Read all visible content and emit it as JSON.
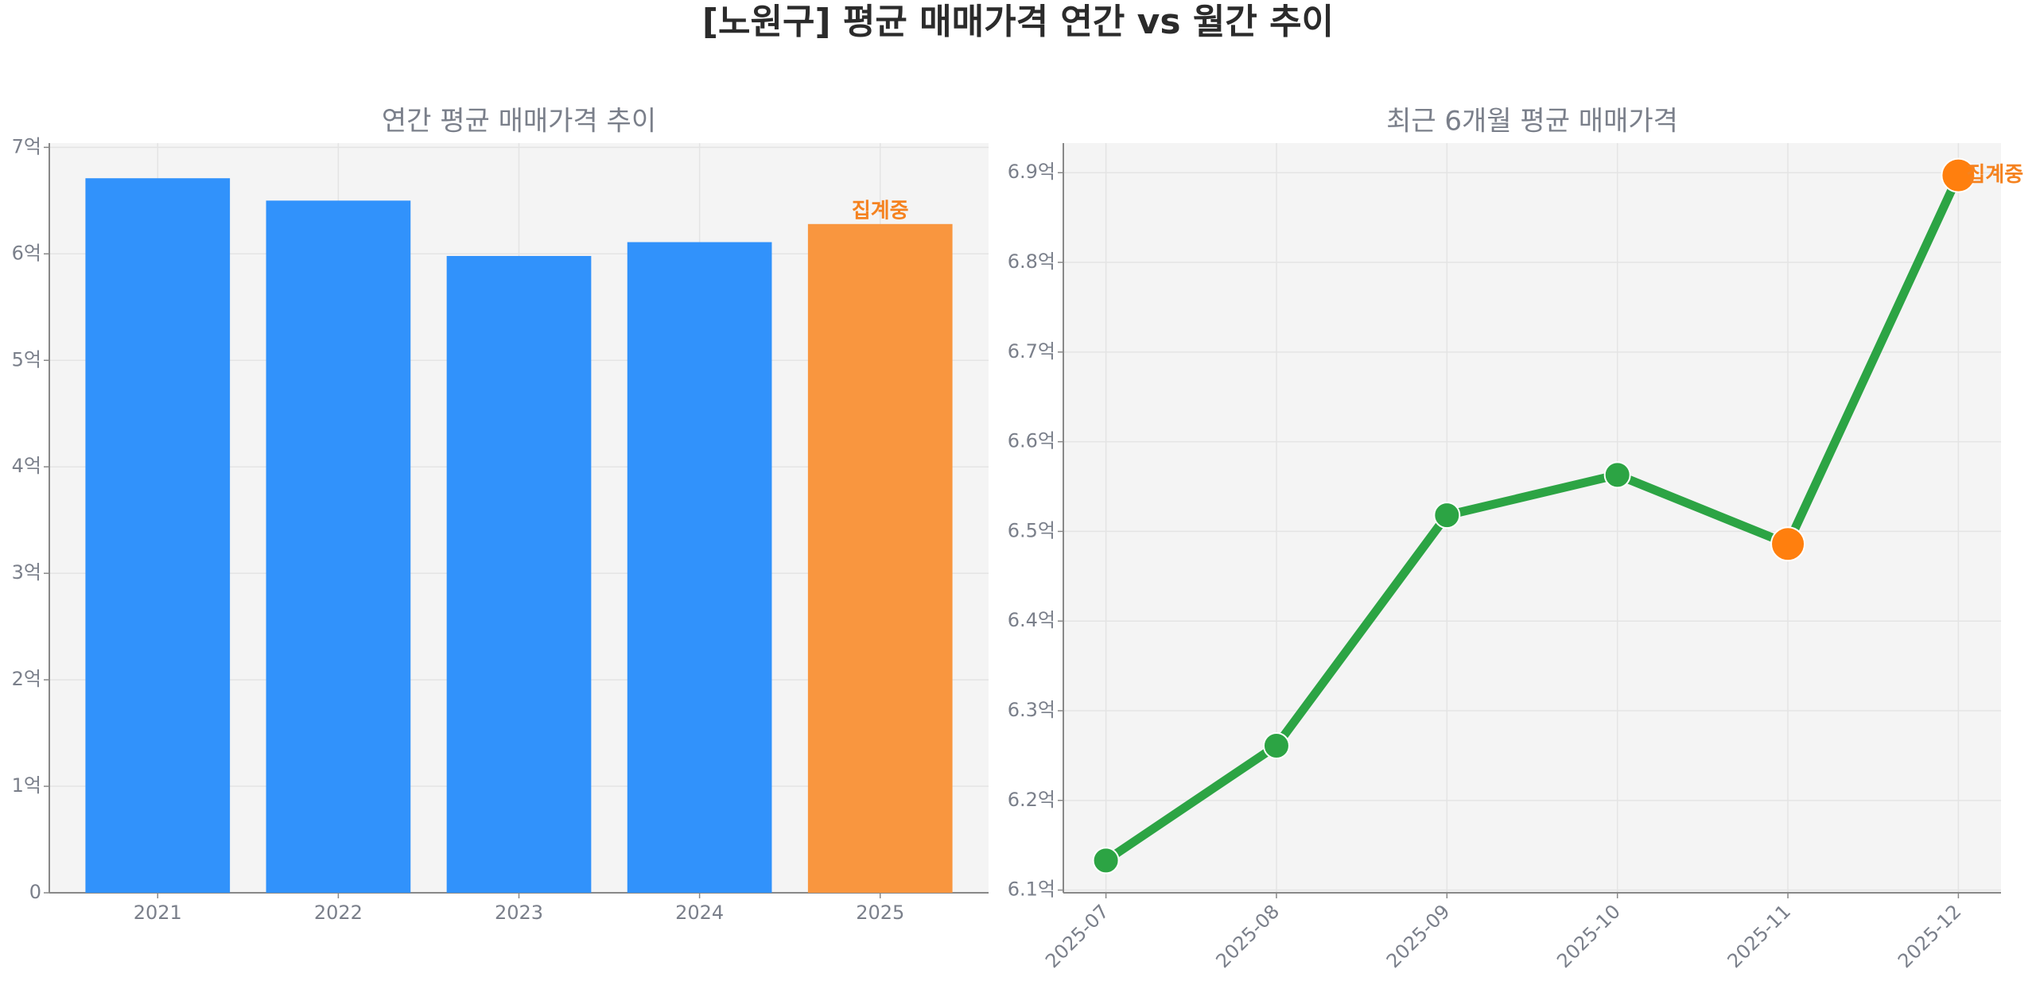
{
  "title": "[노원구] 평균 매매가격 연간 vs 월간 추이",
  "chart_data": [
    {
      "type": "bar",
      "title": "연간 평균 매매가격 추이",
      "categories": [
        "2021",
        "2022",
        "2023",
        "2024",
        "2025"
      ],
      "values": [
        6.71,
        6.5,
        5.98,
        6.11,
        6.28
      ],
      "colors": [
        "#3192fb",
        "#3192fb",
        "#3192fb",
        "#3192fb",
        "#f9963f"
      ],
      "annotation": "집계중",
      "annotation_color": "#f5821f",
      "ylim": [
        0,
        7.04
      ],
      "yticks": [
        0,
        {
          "value": 1,
          "label": "1억"
        },
        {
          "value": 2,
          "label": "2억"
        },
        {
          "value": 3,
          "label": "3억"
        },
        {
          "value": 4,
          "label": "4억"
        },
        {
          "value": 5,
          "label": "5억"
        },
        {
          "value": 6,
          "label": "6억"
        },
        {
          "value": 7,
          "label": "7억"
        }
      ],
      "grid": true
    },
    {
      "type": "line",
      "title": "최근 6개월 평균 매매가격",
      "categories": [
        "2025-07",
        "2025-08",
        "2025-09",
        "2025-10",
        "2025-11",
        "2025-12"
      ],
      "values": [
        6.133,
        6.261,
        6.518,
        6.563,
        6.486,
        6.897
      ],
      "color": "#2ca444",
      "marker_colors": [
        "#2ca444",
        "#2ca444",
        "#2ca444",
        "#2ca444",
        "#ff7f0e",
        "#ff7f0e"
      ],
      "annotation": "집계중",
      "annotation_color": "#f5821f",
      "ylim": [
        6.097,
        6.933
      ],
      "yticks": [
        {
          "value": 6.1,
          "label": "6.1억"
        },
        {
          "value": 6.2,
          "label": "6.2억"
        },
        {
          "value": 6.3,
          "label": "6.3억"
        },
        {
          "value": 6.4,
          "label": "6.4억"
        },
        {
          "value": 6.5,
          "label": "6.5억"
        },
        {
          "value": 6.6,
          "label": "6.6억"
        },
        {
          "value": 6.7,
          "label": "6.7억"
        },
        {
          "value": 6.8,
          "label": "6.8억"
        },
        {
          "value": 6.9,
          "label": "6.9억"
        }
      ],
      "grid": true
    }
  ]
}
